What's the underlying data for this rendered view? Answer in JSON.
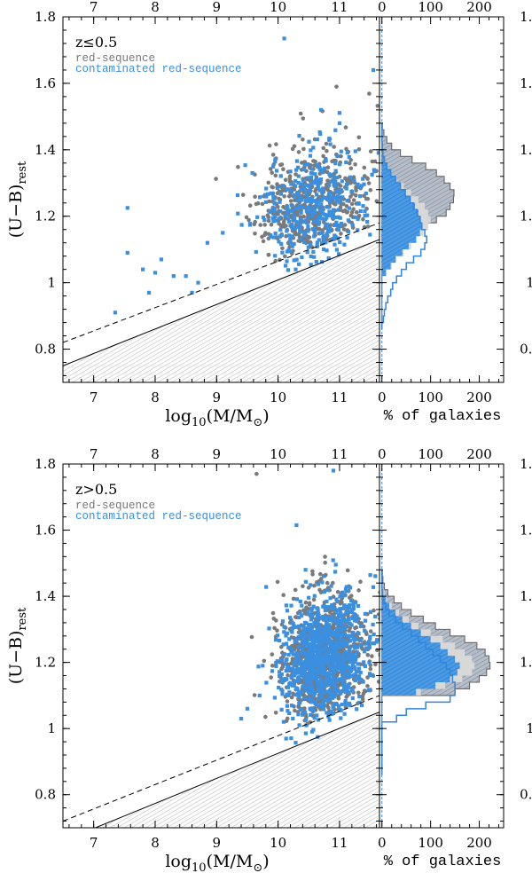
{
  "chart_data": [
    {
      "type": "scatter",
      "panel_label": "z≤0.5",
      "x_range": [
        6.5,
        11.65
      ],
      "y_range": [
        0.7,
        1.8
      ],
      "x_ticks": [
        "7",
        "8",
        "9",
        "10",
        "11"
      ],
      "y_ticks": [
        "0.8",
        "1",
        "1.2",
        "1.4",
        "1.6",
        "1.8"
      ],
      "xlabel_main": "log",
      "xlabel_sub": "10",
      "xlabel_rest": "(M/M",
      "xlabel_sun": "⊙",
      "xlabel_close": ")",
      "ylabel_main": "(U−B)",
      "ylabel_sub": "rest",
      "legend": [
        {
          "name": "red-sequence",
          "color": "#777777"
        },
        {
          "name": "contaminated red-sequence",
          "color": "#3a8fe0"
        }
      ],
      "solid_line": {
        "x": [
          6.5,
          11.65
        ],
        "y": [
          0.75,
          1.13
        ]
      },
      "dashed_line": {
        "x": [
          6.5,
          11.65
        ],
        "y": [
          0.82,
          1.18
        ]
      },
      "scatter_cloud": {
        "x_center": 10.55,
        "x_sd": 0.45,
        "y_center": 1.23,
        "y_sd": 0.09,
        "n_grey": 520,
        "n_blue": 380
      },
      "outliers_blue": [
        [
          7.35,
          0.91
        ],
        [
          7.55,
          1.225
        ],
        [
          7.55,
          1.09
        ],
        [
          7.8,
          1.04
        ],
        [
          8.0,
          1.03
        ],
        [
          8.1,
          1.07
        ],
        [
          7.9,
          0.97
        ],
        [
          8.3,
          1.02
        ],
        [
          8.5,
          1.02
        ],
        [
          8.6,
          0.97
        ],
        [
          8.7,
          1.0
        ],
        [
          8.85,
          1.12
        ],
        [
          9.1,
          1.15
        ],
        [
          10.1,
          1.735
        ],
        [
          11.55,
          1.64
        ],
        [
          10.7,
          1.52
        ],
        [
          11.0,
          1.48
        ]
      ],
      "outliers_grey": [
        [
          10.95,
          1.59
        ]
      ],
      "hist_xlabel": "% of galaxies",
      "hist_x_range": [
        -5,
        250
      ],
      "hist_x_ticks": [
        "0",
        "100",
        "200"
      ],
      "histogram": {
        "bins": [
          0.86,
          0.88,
          0.9,
          0.92,
          0.94,
          0.96,
          0.98,
          1.0,
          1.02,
          1.04,
          1.06,
          1.08,
          1.1,
          1.12,
          1.14,
          1.16,
          1.18,
          1.2,
          1.22,
          1.24,
          1.26,
          1.28,
          1.3,
          1.32,
          1.34,
          1.36,
          1.38,
          1.4,
          1.42,
          1.44,
          1.46,
          1.48
        ],
        "red_sequence": [
          0,
          0,
          0,
          0,
          0,
          0,
          0,
          0,
          0,
          0,
          0,
          0,
          0,
          0,
          62,
          92,
          112,
          132,
          140,
          147,
          148,
          140,
          128,
          112,
          90,
          62,
          38,
          20,
          10,
          4,
          1
        ],
        "red_filled": [
          0,
          0,
          0,
          0,
          0,
          0,
          0,
          0,
          10,
          20,
          30,
          45,
          60,
          72,
          85,
          95,
          100,
          95,
          88,
          75,
          60,
          45,
          30,
          18,
          10,
          5,
          2,
          1,
          0,
          0,
          0
        ],
        "contaminated_filled": [
          0,
          0,
          0,
          0,
          0,
          0,
          0,
          0,
          8,
          18,
          28,
          42,
          55,
          70,
          78,
          82,
          80,
          75,
          68,
          58,
          48,
          38,
          28,
          18,
          10,
          5,
          2,
          1,
          0,
          0,
          0
        ],
        "contaminated_outline": [
          0,
          3,
          5,
          8,
          12,
          18,
          22,
          30,
          40,
          50,
          65,
          80,
          88,
          92,
          88,
          82,
          78,
          72,
          65,
          58,
          48,
          38,
          28,
          18,
          10,
          5,
          2,
          1,
          0,
          0,
          0
        ]
      }
    },
    {
      "type": "scatter",
      "panel_label": "z>0.5",
      "x_range": [
        6.5,
        11.65
      ],
      "y_range": [
        0.7,
        1.8
      ],
      "x_ticks": [
        "7",
        "8",
        "9",
        "10",
        "11"
      ],
      "y_ticks": [
        "0.8",
        "1",
        "1.2",
        "1.4",
        "1.6",
        "1.8"
      ],
      "xlabel_main": "log",
      "xlabel_sub": "10",
      "xlabel_rest": "(M/M",
      "xlabel_sun": "⊙",
      "xlabel_close": ")",
      "ylabel_main": "(U−B)",
      "ylabel_sub": "rest",
      "legend": [
        {
          "name": "red-sequence",
          "color": "#777777"
        },
        {
          "name": "contaminated red-sequence",
          "color": "#3a8fe0"
        }
      ],
      "solid_line": {
        "x": [
          6.5,
          11.65
        ],
        "y": [
          0.66,
          1.05
        ]
      },
      "dashed_line": {
        "x": [
          6.5,
          11.65
        ],
        "y": [
          0.72,
          1.1
        ]
      },
      "scatter_cloud": {
        "x_center": 10.75,
        "x_sd": 0.35,
        "y_center": 1.21,
        "y_sd": 0.1,
        "n_grey": 900,
        "n_blue": 900
      },
      "outliers_blue": [
        [
          10.3,
          1.615
        ],
        [
          10.9,
          1.78
        ],
        [
          9.4,
          1.03
        ],
        [
          9.5,
          1.06
        ],
        [
          9.7,
          1.1
        ],
        [
          9.75,
          1.19
        ]
      ],
      "outliers_grey": [
        [
          9.65,
          1.77
        ]
      ],
      "hist_xlabel": "% of galaxies",
      "hist_x_range": [
        -5,
        250
      ],
      "hist_x_ticks": [
        "0",
        "100",
        "200"
      ],
      "histogram": {
        "bins": [
          0.86,
          0.88,
          0.9,
          0.92,
          0.94,
          0.96,
          0.98,
          1.0,
          1.02,
          1.04,
          1.06,
          1.08,
          1.1,
          1.12,
          1.14,
          1.16,
          1.18,
          1.2,
          1.22,
          1.24,
          1.26,
          1.28,
          1.3,
          1.32,
          1.34,
          1.36,
          1.38,
          1.4,
          1.42,
          1.44,
          1.46,
          1.48
        ],
        "red_sequence": [
          0,
          0,
          0,
          0,
          0,
          0,
          0,
          0,
          0,
          0,
          0,
          0,
          150,
          180,
          200,
          215,
          222,
          220,
          212,
          195,
          170,
          140,
          110,
          85,
          60,
          40,
          25,
          12,
          5,
          2,
          1
        ],
        "red_filled": [
          0,
          0,
          0,
          0,
          0,
          0,
          0,
          0,
          0,
          0,
          0,
          0,
          80,
          130,
          165,
          185,
          190,
          185,
          170,
          150,
          125,
          100,
          75,
          55,
          35,
          20,
          10,
          5,
          2,
          0,
          0
        ],
        "contaminated_filled": [
          0,
          0,
          0,
          0,
          0,
          0,
          0,
          0,
          0,
          0,
          0,
          0,
          70,
          110,
          140,
          155,
          160,
          150,
          135,
          120,
          100,
          80,
          60,
          42,
          28,
          15,
          8,
          3,
          1,
          0,
          0
        ],
        "contaminated_outline": [
          0,
          0,
          0,
          0,
          0,
          0,
          0,
          0,
          30,
          50,
          90,
          140,
          150,
          150,
          145,
          140,
          132,
          120,
          105,
          90,
          75,
          60,
          42,
          28,
          15,
          8,
          3,
          1,
          0,
          0,
          0
        ]
      }
    }
  ]
}
